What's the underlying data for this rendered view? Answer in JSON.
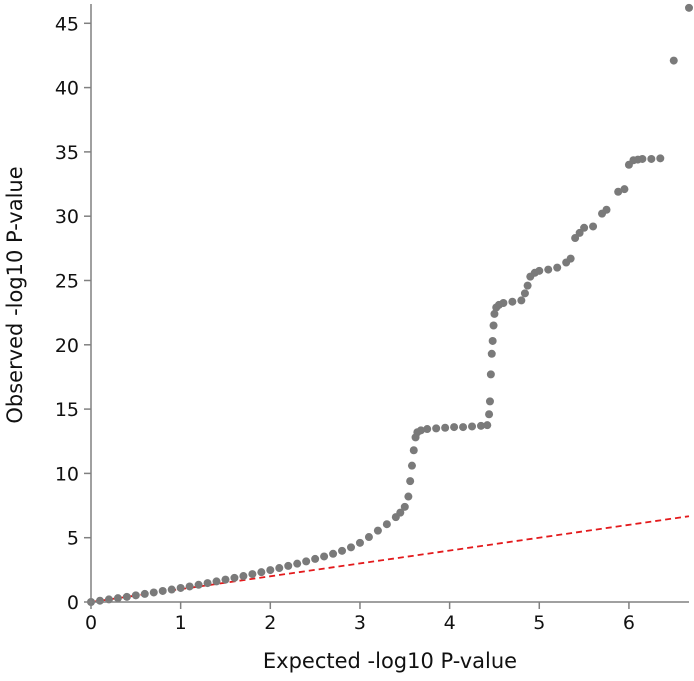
{
  "chart_data": {
    "type": "scatter",
    "title": "",
    "xlabel": "Expected -log10 P-value",
    "ylabel": "Observed -log10 P-value",
    "xlim": [
      0,
      6.67
    ],
    "ylim": [
      0,
      46.5
    ],
    "x_ticks": [
      "0",
      "1",
      "2",
      "3",
      "4",
      "5",
      "6"
    ],
    "y_ticks": [
      "0",
      "5",
      "10",
      "15",
      "20",
      "25",
      "30",
      "35",
      "40",
      "45"
    ],
    "colors": {
      "points": "#7a7a7a",
      "reference_line": "#e31a1c",
      "axis": "#808080",
      "text": "#111111"
    },
    "reference_line": {
      "style": "dashed",
      "x": [
        0,
        6.67
      ],
      "y": [
        0,
        6.67
      ]
    },
    "series": [
      {
        "points": [
          [
            0.0,
            0.0
          ],
          [
            0.1,
            0.1
          ],
          [
            0.2,
            0.2
          ],
          [
            0.3,
            0.3
          ],
          [
            0.4,
            0.4
          ],
          [
            0.5,
            0.52
          ],
          [
            0.6,
            0.63
          ],
          [
            0.7,
            0.74
          ],
          [
            0.8,
            0.86
          ],
          [
            0.9,
            0.97
          ],
          [
            1.0,
            1.09
          ],
          [
            1.1,
            1.21
          ],
          [
            1.2,
            1.34
          ],
          [
            1.3,
            1.47
          ],
          [
            1.4,
            1.6
          ],
          [
            1.5,
            1.74
          ],
          [
            1.6,
            1.88
          ],
          [
            1.7,
            2.02
          ],
          [
            1.8,
            2.17
          ],
          [
            1.9,
            2.32
          ],
          [
            2.0,
            2.48
          ],
          [
            2.1,
            2.64
          ],
          [
            2.2,
            2.81
          ],
          [
            2.3,
            2.98
          ],
          [
            2.4,
            3.16
          ],
          [
            2.5,
            3.35
          ],
          [
            2.6,
            3.54
          ],
          [
            2.7,
            3.75
          ],
          [
            2.8,
            3.98
          ],
          [
            2.9,
            4.25
          ],
          [
            3.0,
            4.6
          ],
          [
            3.1,
            5.05
          ],
          [
            3.2,
            5.55
          ],
          [
            3.3,
            6.05
          ],
          [
            3.4,
            6.6
          ],
          [
            3.45,
            6.95
          ],
          [
            3.5,
            7.4
          ],
          [
            3.54,
            8.2
          ],
          [
            3.56,
            9.4
          ],
          [
            3.58,
            10.6
          ],
          [
            3.6,
            11.8
          ],
          [
            3.62,
            12.8
          ],
          [
            3.64,
            13.2
          ],
          [
            3.68,
            13.35
          ],
          [
            3.75,
            13.45
          ],
          [
            3.85,
            13.5
          ],
          [
            3.95,
            13.55
          ],
          [
            4.05,
            13.6
          ],
          [
            4.15,
            13.6
          ],
          [
            4.25,
            13.65
          ],
          [
            4.35,
            13.7
          ],
          [
            4.42,
            13.75
          ],
          [
            4.44,
            14.6
          ],
          [
            4.45,
            15.6
          ],
          [
            4.46,
            17.7
          ],
          [
            4.47,
            19.3
          ],
          [
            4.48,
            20.3
          ],
          [
            4.49,
            21.5
          ],
          [
            4.5,
            22.4
          ],
          [
            4.52,
            22.9
          ],
          [
            4.55,
            23.1
          ],
          [
            4.6,
            23.25
          ],
          [
            4.7,
            23.35
          ],
          [
            4.8,
            23.45
          ],
          [
            4.84,
            24.0
          ],
          [
            4.87,
            24.6
          ],
          [
            4.9,
            25.3
          ],
          [
            4.95,
            25.6
          ],
          [
            5.0,
            25.75
          ],
          [
            5.1,
            25.85
          ],
          [
            5.2,
            26.0
          ],
          [
            5.3,
            26.4
          ],
          [
            5.35,
            26.7
          ],
          [
            5.4,
            28.3
          ],
          [
            5.45,
            28.7
          ],
          [
            5.5,
            29.1
          ],
          [
            5.6,
            29.2
          ],
          [
            5.7,
            30.2
          ],
          [
            5.75,
            30.5
          ],
          [
            5.88,
            31.9
          ],
          [
            5.95,
            32.1
          ],
          [
            6.0,
            34.0
          ],
          [
            6.05,
            34.35
          ],
          [
            6.1,
            34.4
          ],
          [
            6.15,
            34.45
          ],
          [
            6.25,
            34.45
          ],
          [
            6.35,
            34.5
          ],
          [
            6.5,
            42.1
          ],
          [
            6.67,
            46.2
          ]
        ]
      }
    ]
  }
}
